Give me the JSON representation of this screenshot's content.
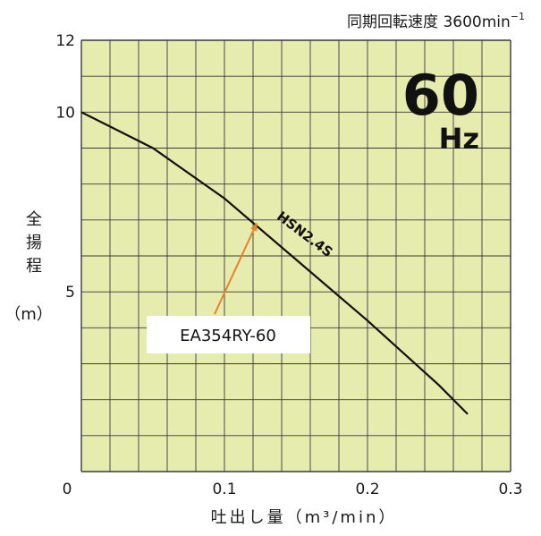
{
  "chart_data": {
    "type": "line",
    "title": "同期回転速度 3600min",
    "title_superscript": "−1",
    "frequency_value": "60",
    "frequency_unit": "Hz",
    "ylabel_chars": [
      "全",
      "揚",
      "程"
    ],
    "ylabel_unit": "（m）",
    "xlabel": "吐出し量（m³/min）",
    "xlim": [
      0,
      0.3
    ],
    "ylim": [
      0,
      12
    ],
    "x_ticks": [
      "0",
      "0.1",
      "0.2",
      "0.3"
    ],
    "y_ticks": [
      "5",
      "10",
      "12"
    ],
    "grid": true,
    "series": [
      {
        "name": "HSN2.4S",
        "x": [
          0,
          0.05,
          0.1,
          0.15,
          0.2,
          0.25,
          0.27
        ],
        "y": [
          10.0,
          9.0,
          7.6,
          5.9,
          4.2,
          2.4,
          1.6
        ]
      }
    ],
    "annotations": [
      {
        "text": "EA354RY-60",
        "points_to_x": 0.12,
        "points_to_y": 7.2
      }
    ],
    "colors": {
      "plot_background": "#e6ebae",
      "grid": "#3a3a3a",
      "curve": "#111111",
      "arrow": "#e8822a"
    }
  }
}
